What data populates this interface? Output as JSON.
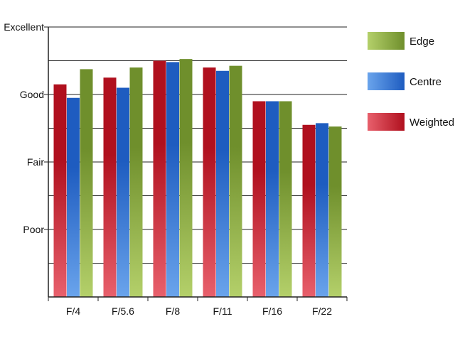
{
  "chart_data": {
    "type": "bar",
    "categories": [
      "F/4",
      "F/5.6",
      "F/8",
      "F/11",
      "F/16",
      "F/22"
    ],
    "y_tick_labels": [
      {
        "value": 2,
        "label": "Poor"
      },
      {
        "value": 4,
        "label": "Fair"
      },
      {
        "value": 6,
        "label": "Good"
      },
      {
        "value": 8,
        "label": "Excellent"
      }
    ],
    "ylim": [
      0,
      8
    ],
    "grid": true,
    "legend_position": "right",
    "legend_order": [
      "Edge",
      "Centre",
      "Weighted"
    ],
    "series": [
      {
        "name": "Weighted",
        "values": [
          6.3,
          6.5,
          7.0,
          6.8,
          5.8,
          5.1
        ],
        "colors": {
          "dark": "#b0101e",
          "light": "#e8606c"
        }
      },
      {
        "name": "Centre",
        "values": [
          5.9,
          6.2,
          6.96,
          6.7,
          5.8,
          5.15
        ],
        "colors": {
          "dark": "#1e5cc0",
          "light": "#6aa4ec"
        }
      },
      {
        "name": "Edge",
        "values": [
          6.75,
          6.8,
          7.05,
          6.85,
          5.8,
          5.05
        ],
        "colors": {
          "dark": "#6f8f2c",
          "light": "#b4d06a"
        }
      }
    ]
  }
}
